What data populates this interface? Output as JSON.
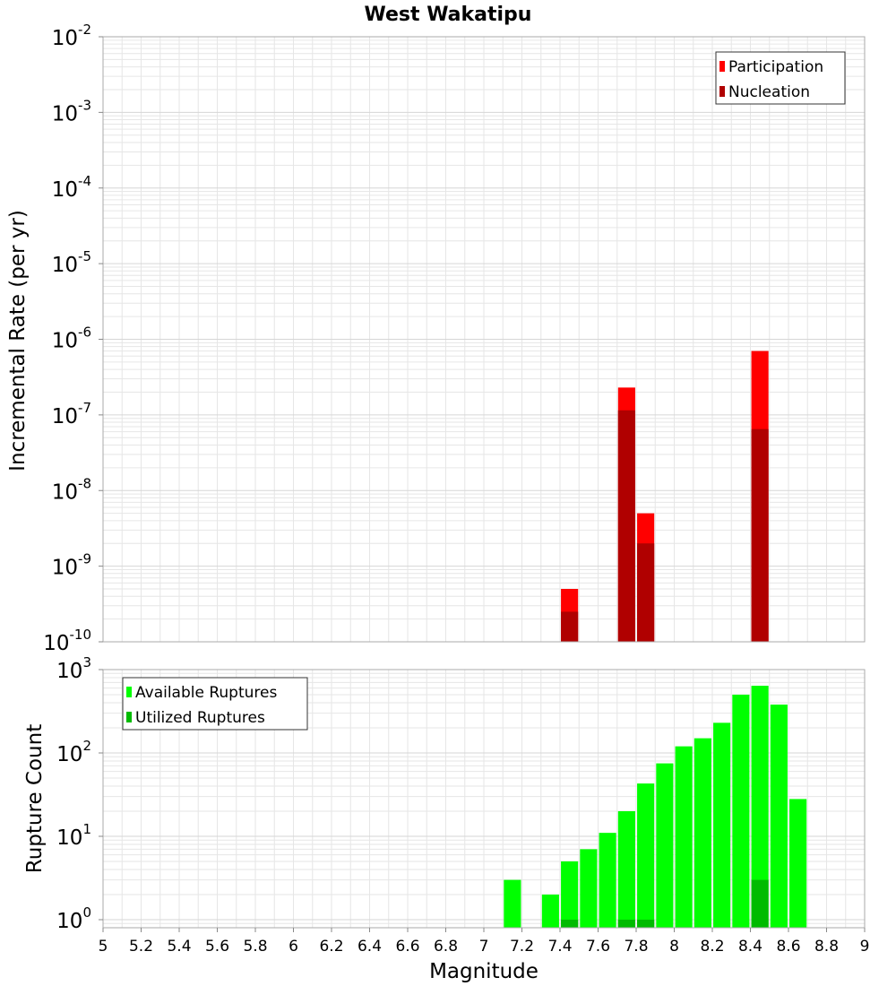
{
  "chart_data": [
    {
      "panel": "top",
      "type": "bar",
      "title": "West Wakatipu",
      "ylabel": "Incremental Rate (per yr)",
      "xlabel": "",
      "yscale": "log",
      "ylim": [
        1e-10,
        0.01
      ],
      "xlim": [
        5,
        9
      ],
      "grid": true,
      "legend_position": "top-right",
      "x": [
        7.45,
        7.75,
        7.85,
        8.45
      ],
      "bar_width": 0.09,
      "series": [
        {
          "name": "Participation",
          "color": "#ff0000",
          "values": [
            5e-10,
            2.3e-07,
            5e-09,
            7e-07
          ]
        },
        {
          "name": "Nucleation",
          "color": "#b00000",
          "values": [
            2.5e-10,
            1.15e-07,
            2e-09,
            6.5e-08
          ]
        }
      ]
    },
    {
      "panel": "bottom",
      "type": "bar",
      "title": "",
      "ylabel": "Rupture Count",
      "xlabel": "Magnitude",
      "yscale": "log",
      "ylim": [
        0.8,
        1000
      ],
      "xlim": [
        5,
        9
      ],
      "grid": true,
      "legend_position": "top-left",
      "x": [
        7.15,
        7.35,
        7.45,
        7.55,
        7.65,
        7.75,
        7.85,
        7.95,
        8.05,
        8.15,
        8.25,
        8.35,
        8.45,
        8.55,
        8.65
      ],
      "bar_width": 0.09,
      "series": [
        {
          "name": "Available Ruptures",
          "color": "#00ff00",
          "values": [
            3,
            2,
            5,
            7,
            11,
            20,
            43,
            75,
            120,
            150,
            230,
            500,
            640,
            380,
            28
          ]
        },
        {
          "name": "Utilized Ruptures",
          "color": "#00bb00",
          "values": [
            null,
            null,
            1,
            null,
            null,
            1,
            1,
            null,
            null,
            null,
            null,
            null,
            3,
            null,
            null
          ]
        }
      ]
    }
  ],
  "axes": {
    "x_ticks": [
      "5",
      "5.2",
      "5.4",
      "5.6",
      "5.8",
      "6",
      "6.2",
      "6.4",
      "6.6",
      "6.8",
      "7",
      "7.2",
      "7.4",
      "7.6",
      "7.8",
      "8",
      "8.2",
      "8.4",
      "8.6",
      "8.8",
      "9"
    ],
    "top_y_ticks": [
      {
        "base": "10",
        "exp": "-2",
        "value": 0.01
      },
      {
        "base": "10",
        "exp": "-3",
        "value": 0.001
      },
      {
        "base": "10",
        "exp": "-4",
        "value": 0.0001
      },
      {
        "base": "10",
        "exp": "-5",
        "value": 1e-05
      },
      {
        "base": "10",
        "exp": "-6",
        "value": 1e-06
      },
      {
        "base": "10",
        "exp": "-7",
        "value": 1e-07
      },
      {
        "base": "10",
        "exp": "-8",
        "value": 1e-08
      },
      {
        "base": "10",
        "exp": "-9",
        "value": 1e-09
      },
      {
        "base": "10",
        "exp": "-10",
        "value": 1e-10
      }
    ],
    "bottom_y_ticks": [
      {
        "base": "10",
        "exp": "3",
        "value": 1000
      },
      {
        "base": "10",
        "exp": "2",
        "value": 100
      },
      {
        "base": "10",
        "exp": "1",
        "value": 10
      },
      {
        "base": "10",
        "exp": "0",
        "value": 1
      }
    ]
  },
  "colors": {
    "participation": "#ff0000",
    "nucleation": "#b00000",
    "available": "#00ff00",
    "utilized": "#00bb00",
    "grid": "#e6e6e6",
    "plot_border": "#aaaaaa"
  }
}
